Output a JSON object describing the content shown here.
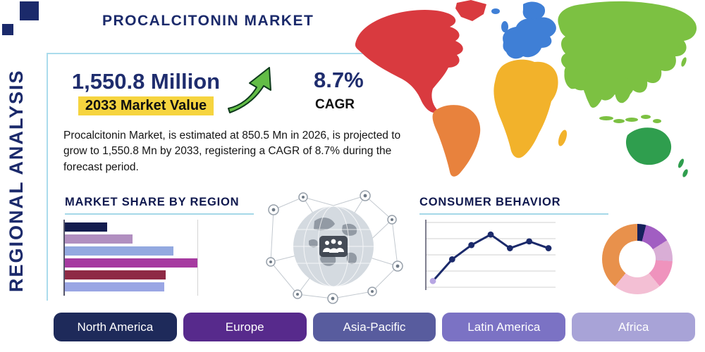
{
  "page": {
    "title": "PROCALCITONIN MARKET",
    "side_label": "REGIONAL ANALYSIS"
  },
  "stats": {
    "value": "1,550.8 Million",
    "value_caption": "2033 Market Value",
    "cagr": "8.7%",
    "cagr_caption": "CAGR",
    "description": "Procalcitonin Market, is estimated at 850.5 Mn in 2026, is projected to grow to 1,550.8 Mn by 2033, registering a CAGR of 8.7% during the forecast period."
  },
  "headings": {
    "market_share": "MARKET SHARE BY REGION",
    "consumer_behavior": "CONSUMER BEHAVIOR"
  },
  "colors": {
    "navy": "#1b2a6b",
    "heading_rule": "#a5d8e8",
    "highlight_yellow": "#f6d43f",
    "growth_arrow_green": "#63bd46"
  },
  "region_buttons": [
    {
      "label": "North America",
      "color": "#1e2a5a"
    },
    {
      "label": "Europe",
      "color": "#572a8c"
    },
    {
      "label": "Asia-Pacific",
      "color": "#585c9e"
    },
    {
      "label": "Latin America",
      "color": "#7b72c4"
    },
    {
      "label": "Africa",
      "color": "#a8a3d7"
    }
  ],
  "map": {
    "colors": {
      "north_america": "#d93a3f",
      "greenland": "#d93a3f",
      "south_america": "#e8823d",
      "europe": "#3f7fd6",
      "uk": "#3f7fd6",
      "iceland": "#3f7fd6",
      "scandinavia": "#3f7fd6",
      "africa": "#f2b22b",
      "madagascar": "#f2b22b",
      "asia": "#7cc142",
      "india": "#7cc142",
      "se_asia": "#7cc142",
      "arabia": "#7cc142",
      "japan": "#7cc142",
      "indonesia": "#7cc142",
      "australia": "#2f9e4e",
      "new_zealand": "#2f9e4e"
    }
  },
  "chart_data": [
    {
      "id": "market_share_by_region",
      "type": "bar",
      "orientation": "horizontal",
      "title": "MARKET SHARE BY REGION",
      "labels_visible": false,
      "values": [
        32,
        51,
        82,
        100,
        76,
        75
      ],
      "value_note": "relative lengths, no axis labels shown",
      "xlim": [
        0,
        100
      ],
      "colors": [
        "#131c4e",
        "#b18fc0",
        "#93a9e0",
        "#a63aa0",
        "#8e2a45",
        "#9aa6e4"
      ],
      "gridline_at": 100
    },
    {
      "id": "consumer_behavior_trend",
      "type": "line",
      "title": "CONSUMER BEHAVIOR",
      "x": [
        1,
        2,
        3,
        4,
        5,
        6,
        7
      ],
      "values": [
        10,
        45,
        68,
        85,
        63,
        74,
        63
      ],
      "ylim": [
        0,
        100
      ],
      "grid": "horizontal",
      "line_color": "#1b2a6b",
      "marker_color": "#1b2a6b",
      "first_marker_color": "#b7a6e3"
    },
    {
      "id": "regional_split_donut",
      "type": "pie",
      "donut": true,
      "labels_visible": false,
      "slices": [
        {
          "label": "navy-sliver",
          "value": 4,
          "color": "#16215c"
        },
        {
          "label": "violet",
          "value": 12,
          "color": "#a15ec2"
        },
        {
          "label": "lavender-pink",
          "value": 10,
          "color": "#d9aed6"
        },
        {
          "label": "pink",
          "value": 13,
          "color": "#ef93bd"
        },
        {
          "label": "pale-pink",
          "value": 22,
          "color": "#f3bfd4"
        },
        {
          "label": "orange",
          "value": 39,
          "color": "#e8914c"
        }
      ]
    }
  ]
}
